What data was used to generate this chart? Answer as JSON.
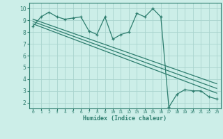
{
  "xlabel": "Humidex (Indice chaleur)",
  "bg_color": "#cceee8",
  "line_color": "#2d7d6e",
  "grid_color": "#aad4ce",
  "xlim": [
    -0.5,
    23.5
  ],
  "ylim": [
    1.5,
    10.5
  ],
  "xticks": [
    0,
    1,
    2,
    3,
    4,
    5,
    6,
    7,
    8,
    9,
    10,
    11,
    12,
    13,
    14,
    15,
    16,
    17,
    18,
    19,
    20,
    21,
    22,
    23
  ],
  "yticks": [
    2,
    3,
    4,
    5,
    6,
    7,
    8,
    9,
    10
  ],
  "series1_x": [
    0,
    1,
    2,
    3,
    4,
    5,
    6,
    7,
    8,
    9,
    10,
    11,
    12,
    13,
    14,
    15,
    16,
    17,
    18,
    19,
    20,
    21,
    22,
    23
  ],
  "series1_y": [
    8.5,
    9.3,
    9.7,
    9.3,
    9.1,
    9.2,
    9.3,
    8.1,
    7.8,
    9.3,
    7.4,
    7.8,
    8.0,
    9.6,
    9.3,
    10.0,
    9.3,
    1.6,
    2.7,
    3.1,
    3.0,
    3.0,
    2.5,
    2.3
  ],
  "series2_x": [
    0,
    23
  ],
  "series2_y": [
    8.7,
    2.8
  ],
  "series3_x": [
    0,
    23
  ],
  "series3_y": [
    8.9,
    3.2
  ],
  "series4_x": [
    0,
    23
  ],
  "series4_y": [
    9.1,
    3.6
  ]
}
